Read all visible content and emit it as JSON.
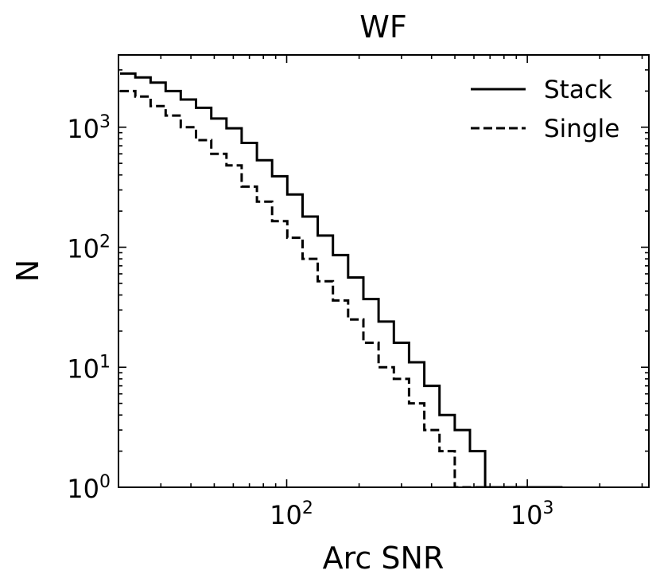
{
  "chart_data": {
    "type": "line",
    "title": "WF",
    "xlabel": "Arc SNR",
    "ylabel": "N",
    "xscale": "log",
    "yscale": "log",
    "xlim": [
      20,
      3200
    ],
    "ylim": [
      1,
      4000
    ],
    "x_ticks": [
      {
        "value": 100,
        "base": "10",
        "exp": "2"
      },
      {
        "value": 1000,
        "base": "10",
        "exp": "3"
      }
    ],
    "y_ticks": [
      {
        "value": 1,
        "base": "10",
        "exp": "0"
      },
      {
        "value": 10,
        "base": "10",
        "exp": "1"
      },
      {
        "value": 100,
        "base": "10",
        "exp": "2"
      },
      {
        "value": 1000,
        "base": "10",
        "exp": "3"
      }
    ],
    "legend_position": "top-right",
    "grid": false,
    "series": [
      {
        "name": "Stack",
        "style": "solid",
        "color": "#000000",
        "bin_edges": [
          20.3,
          23.5,
          27.2,
          31.4,
          36.3,
          42.0,
          48.6,
          56.2,
          65.0,
          75.2,
          87.0,
          100.6,
          116.4,
          134.6,
          155.7,
          180.1,
          208.4,
          241.0,
          278.8,
          322.5,
          373.1,
          431.6,
          499.3,
          577.6,
          668.2,
          773.0,
          894.2,
          1034.4,
          1196.6,
          1384.2
        ],
        "counts": [
          2800,
          2600,
          2350,
          2000,
          1700,
          1450,
          1180,
          980,
          740,
          530,
          390,
          275,
          180,
          125,
          86,
          56,
          37,
          24,
          16,
          11,
          7,
          4,
          3,
          2,
          1,
          1,
          1,
          1,
          1
        ]
      },
      {
        "name": "Single",
        "style": "dashed",
        "color": "#000000",
        "bin_edges": [
          20.3,
          23.5,
          27.2,
          31.4,
          36.3,
          42.0,
          48.6,
          56.2,
          65.0,
          75.2,
          87.0,
          100.6,
          116.4,
          134.6,
          155.7,
          180.1,
          208.4,
          241.0,
          278.8,
          322.5,
          373.1,
          431.6,
          499.3,
          577.6,
          668.2,
          773.0,
          894.2
        ],
        "counts": [
          2000,
          1800,
          1500,
          1250,
          1000,
          780,
          600,
          480,
          320,
          240,
          165,
          120,
          80,
          52,
          36,
          25,
          16,
          10,
          8,
          5,
          3,
          2,
          1,
          1,
          1,
          1
        ]
      }
    ]
  }
}
